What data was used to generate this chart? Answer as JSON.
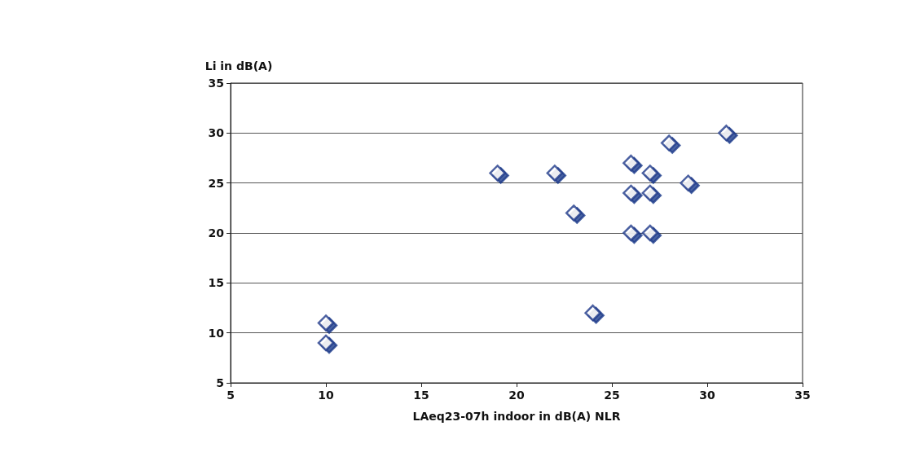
{
  "chart_data": {
    "type": "scatter",
    "xlabel": "LAeq23-07h indoor in dB(A) NLR",
    "ylabel": "Li in dB(A)",
    "x": [
      10,
      10,
      19,
      22,
      23,
      24,
      26,
      27,
      26,
      27,
      26,
      27,
      28,
      29,
      31
    ],
    "values": [
      11,
      9,
      26,
      26,
      22,
      12,
      27,
      26,
      24,
      24,
      20,
      20,
      29,
      25,
      30
    ],
    "color": "#1f3a8a",
    "marker": "diamond",
    "xlim": [
      5,
      35
    ],
    "xticks": [
      5,
      10,
      15,
      20,
      25,
      30,
      35
    ],
    "ylim": [
      5,
      35
    ],
    "yticks": [
      5,
      10,
      15,
      20,
      25,
      30,
      35
    ],
    "grid": "y"
  }
}
